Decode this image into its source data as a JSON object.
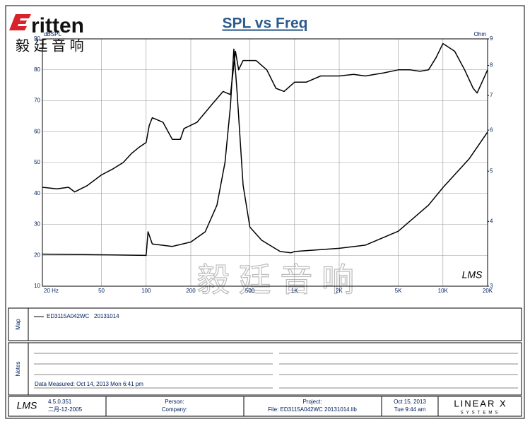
{
  "chart_data": {
    "type": "line",
    "title": "SPL vs Freq",
    "ylabel": "dBSPL",
    "y2label": "Ohm",
    "xscale": "log",
    "y2scale": "log",
    "grid": true,
    "xlim": [
      20,
      20000
    ],
    "ylim": [
      10,
      90
    ],
    "y2lim": [
      3,
      9
    ],
    "xticks": [
      {
        "value": 20,
        "label": "20  Hz"
      },
      50,
      100,
      200,
      500,
      {
        "value": 1000,
        "label": "1K"
      },
      {
        "value": 2000,
        "label": "2K"
      },
      {
        "value": 5000,
        "label": "5K"
      },
      {
        "value": 10000,
        "label": "10K"
      },
      {
        "value": 20000,
        "label": "20K"
      }
    ],
    "yticks": [
      10,
      20,
      30,
      40,
      50,
      60,
      70,
      80,
      90
    ],
    "y2ticks": [
      3,
      4,
      5,
      6,
      7,
      8,
      9
    ],
    "series": [
      {
        "name": "ED3115A042WC   20131014",
        "color": "#000000",
        "x": [
          20,
          25,
          30,
          33,
          40,
          50,
          60,
          70,
          80,
          90,
          100,
          105,
          110,
          130,
          150,
          170,
          180,
          220,
          280,
          330,
          370,
          400,
          420,
          450,
          550,
          650,
          750,
          850,
          1000,
          1200,
          1500,
          2000,
          2500,
          3000,
          4000,
          5000,
          6000,
          7000,
          8000,
          9000,
          10000,
          12000,
          14000,
          16000,
          17000,
          20000
        ],
        "values": [
          42,
          41.5,
          42,
          40.5,
          42.5,
          46,
          48,
          50,
          53,
          55,
          56.5,
          62,
          64.5,
          63,
          57.5,
          57.5,
          61,
          63,
          69,
          73,
          72,
          86,
          80,
          83,
          83,
          80,
          74,
          73,
          76,
          76,
          78,
          78,
          78.5,
          78,
          79,
          80,
          80,
          79.5,
          80,
          84,
          88.5,
          86,
          80,
          74,
          72.5,
          80
        ]
      },
      {
        "color": "#000000",
        "axis": "y2",
        "x": [
          20,
          100,
          103,
          110,
          150,
          200,
          250,
          300,
          340,
          370,
          390,
          410,
          450,
          500,
          600,
          800,
          950,
          1000,
          2000,
          3000,
          5000,
          8000,
          10000,
          15000,
          20000
        ],
        "values": [
          3.46,
          3.44,
          3.82,
          3.62,
          3.58,
          3.65,
          3.82,
          4.3,
          5.2,
          6.68,
          8.6,
          7.1,
          4.7,
          3.9,
          3.68,
          3.5,
          3.48,
          3.5,
          3.55,
          3.6,
          3.83,
          4.3,
          4.65,
          5.28,
          5.95
        ]
      }
    ],
    "annotations": [
      "LMS"
    ]
  },
  "logo": {
    "text": "ritten",
    "chinese": "毅 廷 音 响"
  },
  "watermark": "毅 廷 音 响",
  "map": {
    "label": "Map"
  },
  "notes": {
    "label": "Notes",
    "measured": "Data Measured: Oct 14, 2013  Mon  6:41 pm"
  },
  "footer": {
    "logo": "LMS",
    "version": "4.5.0.351",
    "date": "二月-12-2005",
    "person": "Person:",
    "company": "Company:",
    "project": "Project:",
    "file": "File: ED3115A042WC 20131014.lib",
    "print_date": "Oct 15, 2013",
    "print_time": "Tue  9:44 am",
    "brand": "LINEAR X",
    "brand_sub": "SYSTEMS"
  }
}
